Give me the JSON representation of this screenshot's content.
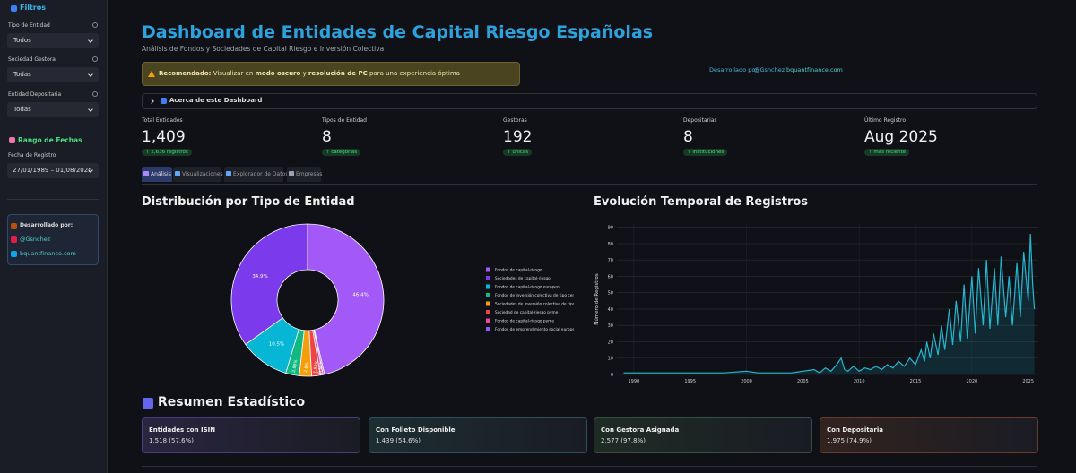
{
  "sidebar": {
    "filters_title": "Filtros",
    "filters": [
      {
        "label": "Tipo de Entidad",
        "value": "Todos"
      },
      {
        "label": "Sociedad Gestora",
        "value": "Todas"
      },
      {
        "label": "Entidad Depositaria",
        "value": "Todas"
      }
    ],
    "date_title": "Rango de Fechas",
    "date_label": "Fecha de Registro",
    "date_value": "27/01/1989 – 01/08/2025",
    "dev_title": "Desarrollado por:",
    "links": [
      "@Gsnchez",
      "bquantfinance.com"
    ]
  },
  "header": {
    "title": "Dashboard de Entidades de Capital Riesgo Españolas",
    "subtitle": "Análisis de Fondos y Sociedades de Capital Riesgo e Inversión Colectiva"
  },
  "notice": [
    "Recomendado:",
    " Visualizar en ",
    "modo oscuro",
    " y ",
    "resolución de PC",
    " para una experiencia óptima"
  ],
  "credit": {
    "text": "Desarrollado por",
    "links": [
      "@Gsnchez",
      "bquantfinance.com"
    ]
  },
  "expander": "Acerca de este Dashboard",
  "metrics": [
    {
      "label": "Total Entidades",
      "value": "1,409",
      "delta": "↑ 2,636 registros"
    },
    {
      "label": "Tipos de Entidad",
      "value": "8",
      "delta": "↑ categorías"
    },
    {
      "label": "Gestoras",
      "value": "192",
      "delta": "↑ únicas"
    },
    {
      "label": "Depositarias",
      "value": "8",
      "delta": "↑ instituciones"
    },
    {
      "label": "Último Registro",
      "value": "Aug 2025",
      "delta": "↑ más reciente"
    }
  ],
  "tabs": [
    "Análisis",
    "Visualizaciones",
    "Explorador de Datos",
    "Empresas"
  ],
  "chart_data": [
    {
      "type": "pie",
      "title": "Distribución por Tipo de Entidad",
      "categories": [
        "Fondos de capital-riesgo",
        "Sociedades de capital-riesgo",
        "Fondos de capital-riesgo europeo",
        "Fondos de inversión colectiva de tipo cerrado",
        "Sociedades de inversión colectiva de tipo cerrado",
        "Sociedad de capital-riesgo pyme",
        "Fondos de capital-riesgo pyme",
        "Fondos de emprendimiento social europeo"
      ],
      "values": [
        46.4,
        34.9,
        10.5,
        2.86,
        2.6,
        1.84,
        0.583,
        0.317
      ],
      "value_labels": [
        "46.4%",
        "34.9%",
        "10.5%",
        "2.86%",
        "2.6%",
        "1.84%",
        "0.583%",
        "0.317%"
      ],
      "colors": [
        "#a259f7",
        "#7c3aed",
        "#06b6d4",
        "#10b981",
        "#f59e0b",
        "#ef4444",
        "#ec4899",
        "#8b5cf6"
      ],
      "legend": "right"
    },
    {
      "type": "line",
      "title": "Evolución Temporal de Registros",
      "y_label": "Número de Registros",
      "x": [
        1989.1,
        1990,
        1992,
        1994,
        1996,
        1998,
        2000,
        2001,
        2002,
        2003,
        2004,
        2005,
        2006,
        2006.5,
        2007,
        2007.5,
        2008,
        2008.4,
        2008.7,
        2009,
        2009.5,
        2010,
        2010.5,
        2011,
        2011.5,
        2012,
        2012.5,
        2013,
        2013.5,
        2014,
        2014.5,
        2015,
        2015.5,
        2015.8,
        2016,
        2016.3,
        2016.6,
        2017,
        2017.3,
        2017.6,
        2018,
        2018.3,
        2018.6,
        2019,
        2019.3,
        2019.6,
        2020,
        2020.3,
        2020.6,
        2021,
        2021.3,
        2021.6,
        2022,
        2022.3,
        2022.6,
        2023,
        2023.3,
        2023.6,
        2024,
        2024.3,
        2024.6,
        2025,
        2025.2,
        2025.4,
        2025.55
      ],
      "values": [
        1,
        1,
        1,
        1,
        1,
        1,
        2,
        1,
        1,
        1,
        1,
        2,
        3,
        1,
        4,
        2,
        6,
        10,
        3,
        2,
        5,
        2,
        4,
        3,
        5,
        3,
        6,
        4,
        8,
        5,
        10,
        6,
        15,
        8,
        20,
        10,
        25,
        12,
        30,
        15,
        40,
        18,
        45,
        20,
        55,
        22,
        60,
        25,
        65,
        30,
        70,
        28,
        65,
        30,
        72,
        35,
        60,
        30,
        68,
        35,
        75,
        45,
        86,
        55,
        40
      ],
      "color": "#22b8cf",
      "xlim": [
        1988.5,
        2025.9
      ],
      "xticks": [
        1990,
        1995,
        2000,
        2005,
        2010,
        2015,
        2020,
        2025
      ],
      "ylim": [
        0,
        92
      ],
      "yticks": [
        0,
        10,
        20,
        30,
        40,
        50,
        60,
        70,
        80,
        90
      ],
      "grid": true
    }
  ],
  "summary": {
    "title": "Resumen Estadístico",
    "cards": [
      {
        "label": "Entidades con ISIN",
        "value": "1,518 (57.6%)"
      },
      {
        "label": "Con Folleto Disponible",
        "value": "1,439 (54.6%)"
      },
      {
        "label": "Con Gestora Asignada",
        "value": "2,577 (97.8%)"
      },
      {
        "label": "Con Depositaria",
        "value": "1,975 (74.9%)"
      }
    ]
  }
}
